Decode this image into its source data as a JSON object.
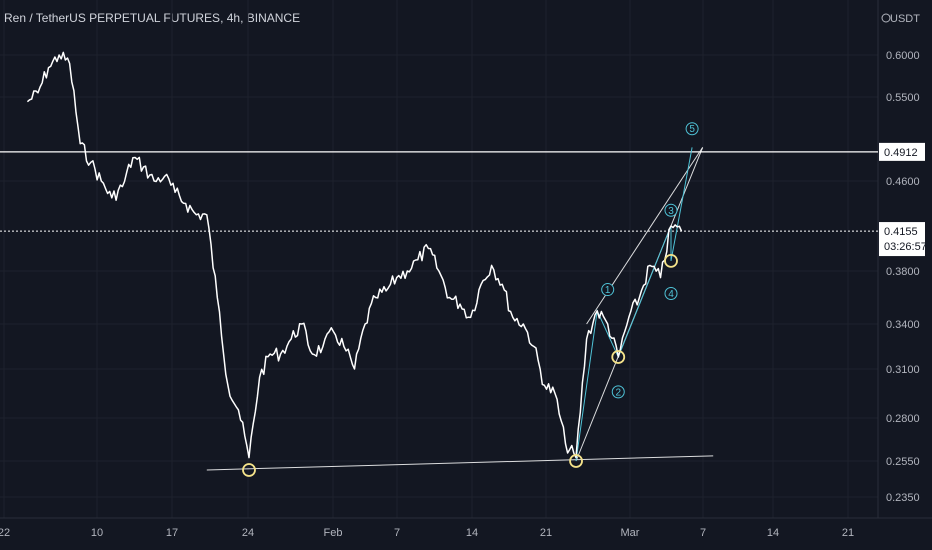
{
  "header": {
    "title": "Ren / TetherUS PERPETUAL FUTURES, 4h, BINANCE"
  },
  "colors": {
    "background": "#131722",
    "price_line": "#ffffff",
    "wave": "#4fc3d7",
    "pivot_marker": "#f5e38a",
    "axis_text": "#b2b5be"
  },
  "chart_data": {
    "type": "line",
    "currency": "USDT",
    "y_axis": {
      "ticks": [
        0.6,
        0.55,
        0.46,
        0.38,
        0.34,
        0.31,
        0.28,
        0.255,
        0.235
      ],
      "tick_labels": [
        "0.6000",
        "0.5500",
        "0.4600",
        "0.3800",
        "0.3400",
        "0.3100",
        "0.2800",
        "0.2550",
        "0.2350"
      ],
      "scale": "log"
    },
    "x_axis": {
      "tick_labels": [
        "22",
        "10",
        "17",
        "24",
        "Feb",
        "7",
        "14",
        "21",
        "Mar",
        "7",
        "14",
        "21"
      ]
    },
    "series": [
      {
        "values_by_date": [
          [
            "2022-01-03",
            0.545
          ],
          [
            "2022-01-04",
            0.555
          ],
          [
            "2022-01-05",
            0.585
          ],
          [
            "2022-01-06",
            0.6
          ],
          [
            "2022-01-07",
            0.59
          ],
          [
            "2022-01-08",
            0.5
          ],
          [
            "2022-01-09",
            0.48
          ],
          [
            "2022-01-10",
            0.46
          ],
          [
            "2022-01-11",
            0.445
          ],
          [
            "2022-01-12",
            0.455
          ],
          [
            "2022-01-13",
            0.485
          ],
          [
            "2022-01-14",
            0.475
          ],
          [
            "2022-01-15",
            0.46
          ],
          [
            "2022-01-16",
            0.465
          ],
          [
            "2022-01-17",
            0.45
          ],
          [
            "2022-01-18",
            0.44
          ],
          [
            "2022-01-19",
            0.43
          ],
          [
            "2022-01-20",
            0.43
          ],
          [
            "2022-01-21",
            0.36
          ],
          [
            "2022-01-22",
            0.3
          ],
          [
            "2022-01-23",
            0.285
          ],
          [
            "2022-01-24",
            0.257
          ],
          [
            "2022-01-25",
            0.305
          ],
          [
            "2022-01-26",
            0.32
          ],
          [
            "2022-01-27",
            0.32
          ],
          [
            "2022-01-28",
            0.33
          ],
          [
            "2022-01-29",
            0.34
          ],
          [
            "2022-01-30",
            0.32
          ],
          [
            "2022-01-31",
            0.325
          ],
          [
            "2022-02-01",
            0.335
          ],
          [
            "2022-02-02",
            0.325
          ],
          [
            "2022-02-03",
            0.31
          ],
          [
            "2022-02-04",
            0.34
          ],
          [
            "2022-02-05",
            0.36
          ],
          [
            "2022-02-06",
            0.365
          ],
          [
            "2022-02-07",
            0.375
          ],
          [
            "2022-02-08",
            0.38
          ],
          [
            "2022-02-09",
            0.39
          ],
          [
            "2022-02-10",
            0.4
          ],
          [
            "2022-02-11",
            0.38
          ],
          [
            "2022-02-12",
            0.36
          ],
          [
            "2022-02-13",
            0.355
          ],
          [
            "2022-02-14",
            0.345
          ],
          [
            "2022-02-15",
            0.37
          ],
          [
            "2022-02-16",
            0.385
          ],
          [
            "2022-02-17",
            0.37
          ],
          [
            "2022-02-18",
            0.345
          ],
          [
            "2022-02-19",
            0.34
          ],
          [
            "2022-02-20",
            0.325
          ],
          [
            "2022-02-21",
            0.3
          ],
          [
            "2022-02-22",
            0.295
          ],
          [
            "2022-02-23",
            0.265
          ],
          [
            "2022-02-24",
            0.257
          ],
          [
            "2022-02-25",
            0.33
          ],
          [
            "2022-02-26",
            0.35
          ],
          [
            "2022-02-27",
            0.34
          ],
          [
            "2022-02-28",
            0.318
          ],
          [
            "2022-03-01",
            0.345
          ],
          [
            "2022-03-02",
            0.36
          ],
          [
            "2022-03-03",
            0.385
          ],
          [
            "2022-03-04",
            0.375
          ],
          [
            "2022-03-05",
            0.42
          ],
          [
            "2022-03-06",
            0.4155
          ]
        ]
      }
    ],
    "horizontal_levels": [
      {
        "label": "0.4912",
        "value": 0.4912
      }
    ],
    "last_price": {
      "label": "0.4155",
      "value": 0.4155,
      "countdown": "03:26:57"
    },
    "trendlines": [
      {
        "from": [
          "2022-01-20",
          0.25
        ],
        "to": [
          "2022-03-09",
          0.258
        ]
      },
      {
        "from": [
          "2022-02-24",
          0.255
        ],
        "to": [
          "2022-03-08",
          0.496
        ]
      },
      {
        "from": [
          "2022-02-25",
          0.34
        ],
        "to": [
          "2022-03-08",
          0.496
        ]
      }
    ],
    "wave_labels": [
      {
        "text": "1",
        "at": [
          "2022-02-27",
          0.366
        ]
      },
      {
        "text": "2",
        "at": [
          "2022-02-28",
          0.296
        ]
      },
      {
        "text": "3",
        "at": [
          "2022-03-05",
          0.434
        ]
      },
      {
        "text": "4",
        "at": [
          "2022-03-05",
          0.363
        ]
      },
      {
        "text": "5",
        "at": [
          "2022-03-07",
          0.516
        ]
      }
    ],
    "pivot_markers": [
      {
        "at": [
          "2022-01-24",
          0.25
        ]
      },
      {
        "at": [
          "2022-02-24",
          0.255
        ]
      },
      {
        "at": [
          "2022-02-28",
          0.318
        ]
      },
      {
        "at": [
          "2022-03-05",
          0.389
        ]
      }
    ]
  }
}
